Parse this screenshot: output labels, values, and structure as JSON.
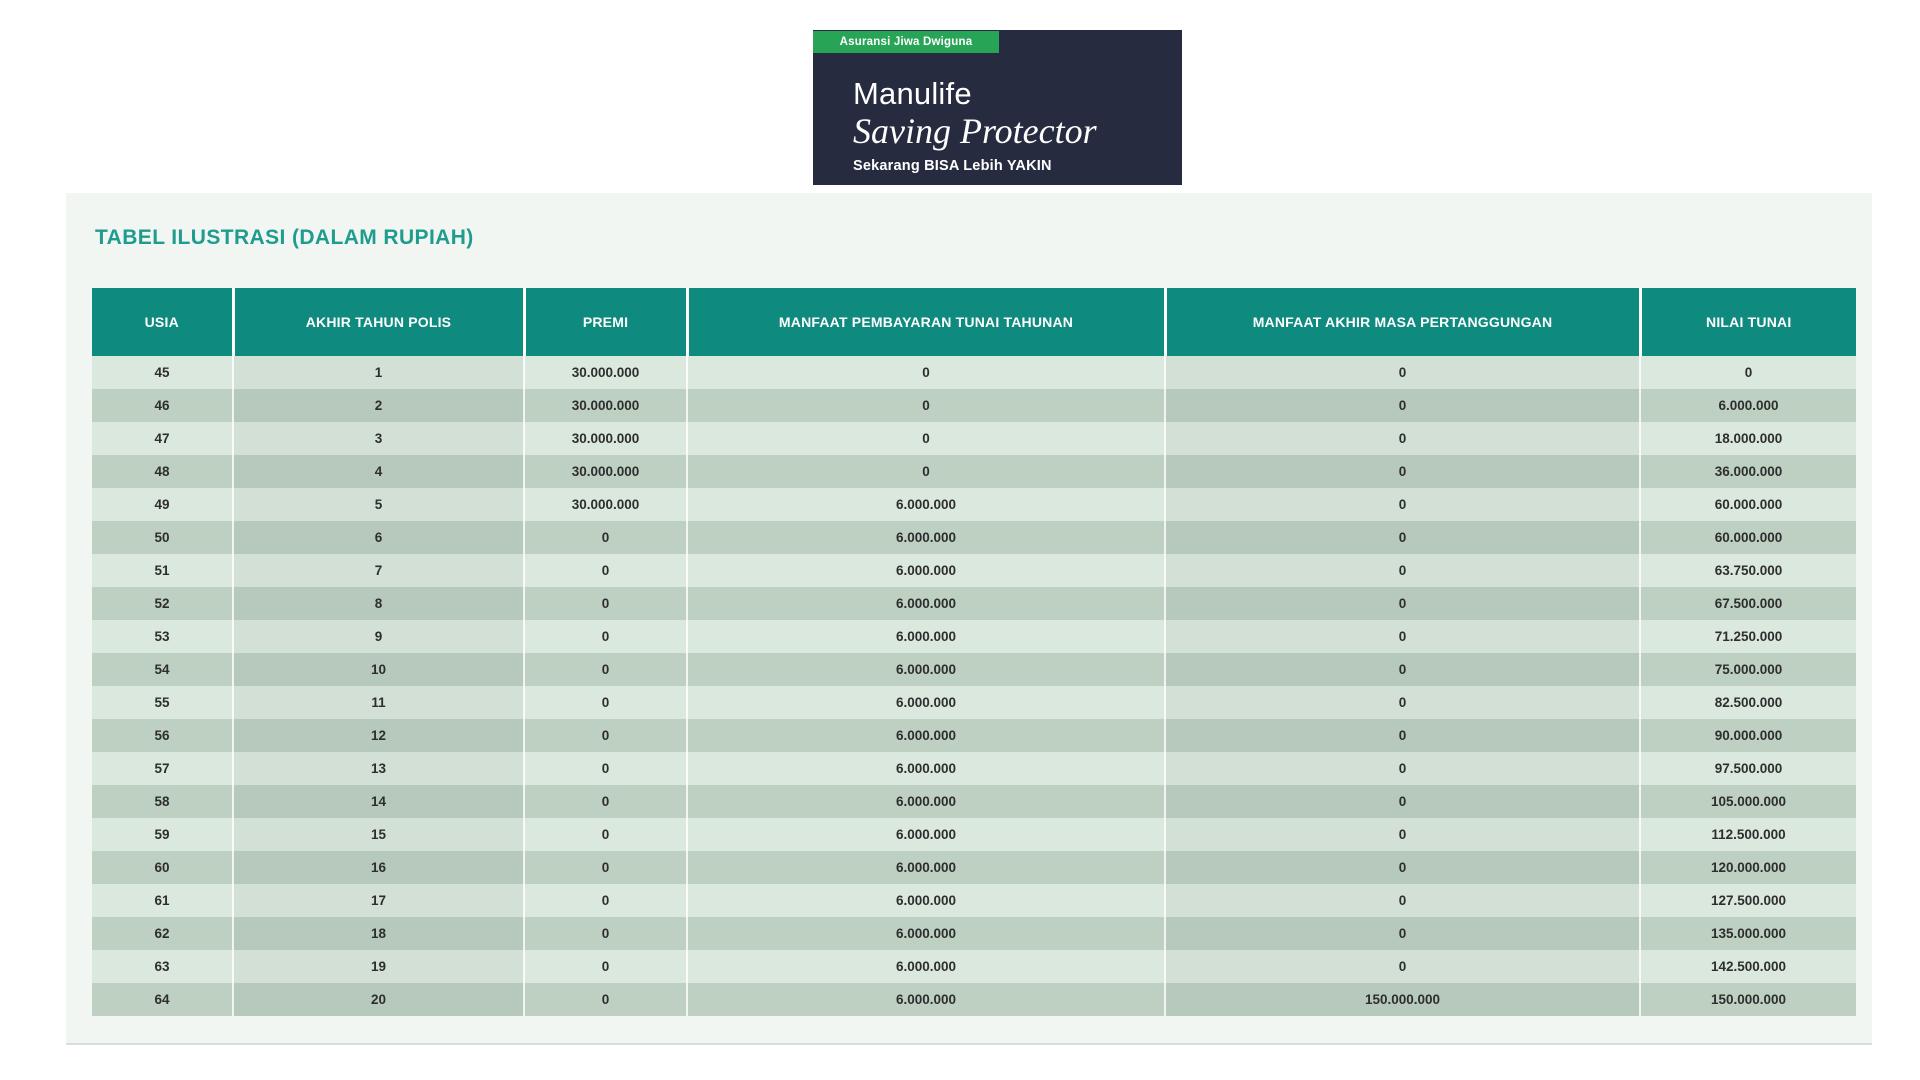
{
  "brand_card": {
    "tag": "Asuransi Jiwa Dwiguna",
    "brand": "Manulife",
    "product": "Saving Protector",
    "tagline": "Sekarang BISA Lebih YAKIN"
  },
  "section": {
    "title": "TABEL ILUSTRASI (DALAM RUPIAH)"
  },
  "table": {
    "columns": [
      "USIA",
      "AKHIR TAHUN POLIS",
      "PREMI",
      "MANFAAT PEMBAYARAN TUNAI TAHUNAN",
      "MANFAAT AKHIR MASA PERTANGGUNGAN",
      "NILAI TUNAI"
    ],
    "rows": [
      [
        "45",
        "1",
        "30.000.000",
        "0",
        "0",
        "0"
      ],
      [
        "46",
        "2",
        "30.000.000",
        "0",
        "0",
        "6.000.000"
      ],
      [
        "47",
        "3",
        "30.000.000",
        "0",
        "0",
        "18.000.000"
      ],
      [
        "48",
        "4",
        "30.000.000",
        "0",
        "0",
        "36.000.000"
      ],
      [
        "49",
        "5",
        "30.000.000",
        "6.000.000",
        "0",
        "60.000.000"
      ],
      [
        "50",
        "6",
        "0",
        "6.000.000",
        "0",
        "60.000.000"
      ],
      [
        "51",
        "7",
        "0",
        "6.000.000",
        "0",
        "63.750.000"
      ],
      [
        "52",
        "8",
        "0",
        "6.000.000",
        "0",
        "67.500.000"
      ],
      [
        "53",
        "9",
        "0",
        "6.000.000",
        "0",
        "71.250.000"
      ],
      [
        "54",
        "10",
        "0",
        "6.000.000",
        "0",
        "75.000.000"
      ],
      [
        "55",
        "11",
        "0",
        "6.000.000",
        "0",
        "82.500.000"
      ],
      [
        "56",
        "12",
        "0",
        "6.000.000",
        "0",
        "90.000.000"
      ],
      [
        "57",
        "13",
        "0",
        "6.000.000",
        "0",
        "97.500.000"
      ],
      [
        "58",
        "14",
        "0",
        "6.000.000",
        "0",
        "105.000.000"
      ],
      [
        "59",
        "15",
        "0",
        "6.000.000",
        "0",
        "112.500.000"
      ],
      [
        "60",
        "16",
        "0",
        "6.000.000",
        "0",
        "120.000.000"
      ],
      [
        "61",
        "17",
        "0",
        "6.000.000",
        "0",
        "127.500.000"
      ],
      [
        "62",
        "18",
        "0",
        "6.000.000",
        "0",
        "135.000.000"
      ],
      [
        "63",
        "19",
        "0",
        "6.000.000",
        "0",
        "142.500.000"
      ],
      [
        "64",
        "20",
        "0",
        "6.000.000",
        "150.000.000",
        "150.000.000"
      ]
    ]
  },
  "colors": {
    "navy": "#272b3f",
    "tag_green": "#28a457",
    "header_teal": "#0e8a7e",
    "title_teal": "#1f9c8e",
    "row_light": "#dbe8dd",
    "row_dark": "#bdd0c2",
    "panel_bg": "#f1f6f2"
  }
}
